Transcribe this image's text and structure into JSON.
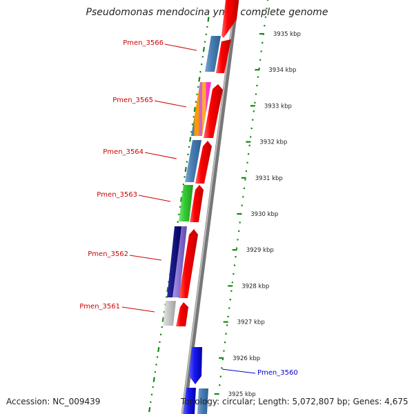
{
  "title": "Pseudomonas mendocina ymp, complete genome",
  "accession": "Accession: NC_009439",
  "topology": "Topology: circular; Length: 5,072,807 bp; Genes: 4,675",
  "scale_ticks": [
    "3935 kbp",
    "3934 kbp",
    "3933 kbp",
    "3932 kbp",
    "3931 kbp",
    "3930 kbp",
    "3929 kbp",
    "3928 kbp",
    "3927 kbp",
    "3926 kbp",
    "3925 kbp"
  ],
  "gene_labels": [
    {
      "name": "Pmen_3566",
      "color": "#cc0000"
    },
    {
      "name": "Pmen_3565",
      "color": "#cc0000"
    },
    {
      "name": "Pmen_3564",
      "color": "#cc0000"
    },
    {
      "name": "Pmen_3563",
      "color": "#cc0000"
    },
    {
      "name": "Pmen_3562",
      "color": "#cc0000"
    },
    {
      "name": "Pmen_3561",
      "color": "#cc0000"
    },
    {
      "name": "Pmen_3560",
      "color": "#0000cc"
    }
  ],
  "colors": {
    "cds": "#ff0000",
    "backbone": "#888888",
    "dots": "#118811",
    "steelblue": "#4a7fb5",
    "green": "#33cc33",
    "navy": "#00007f",
    "purple": "#7f66cc",
    "lightgray": "#c8c8c8",
    "blue": "#1a1aee",
    "orange": "#ff9900",
    "magenta": "#ff33cc"
  }
}
